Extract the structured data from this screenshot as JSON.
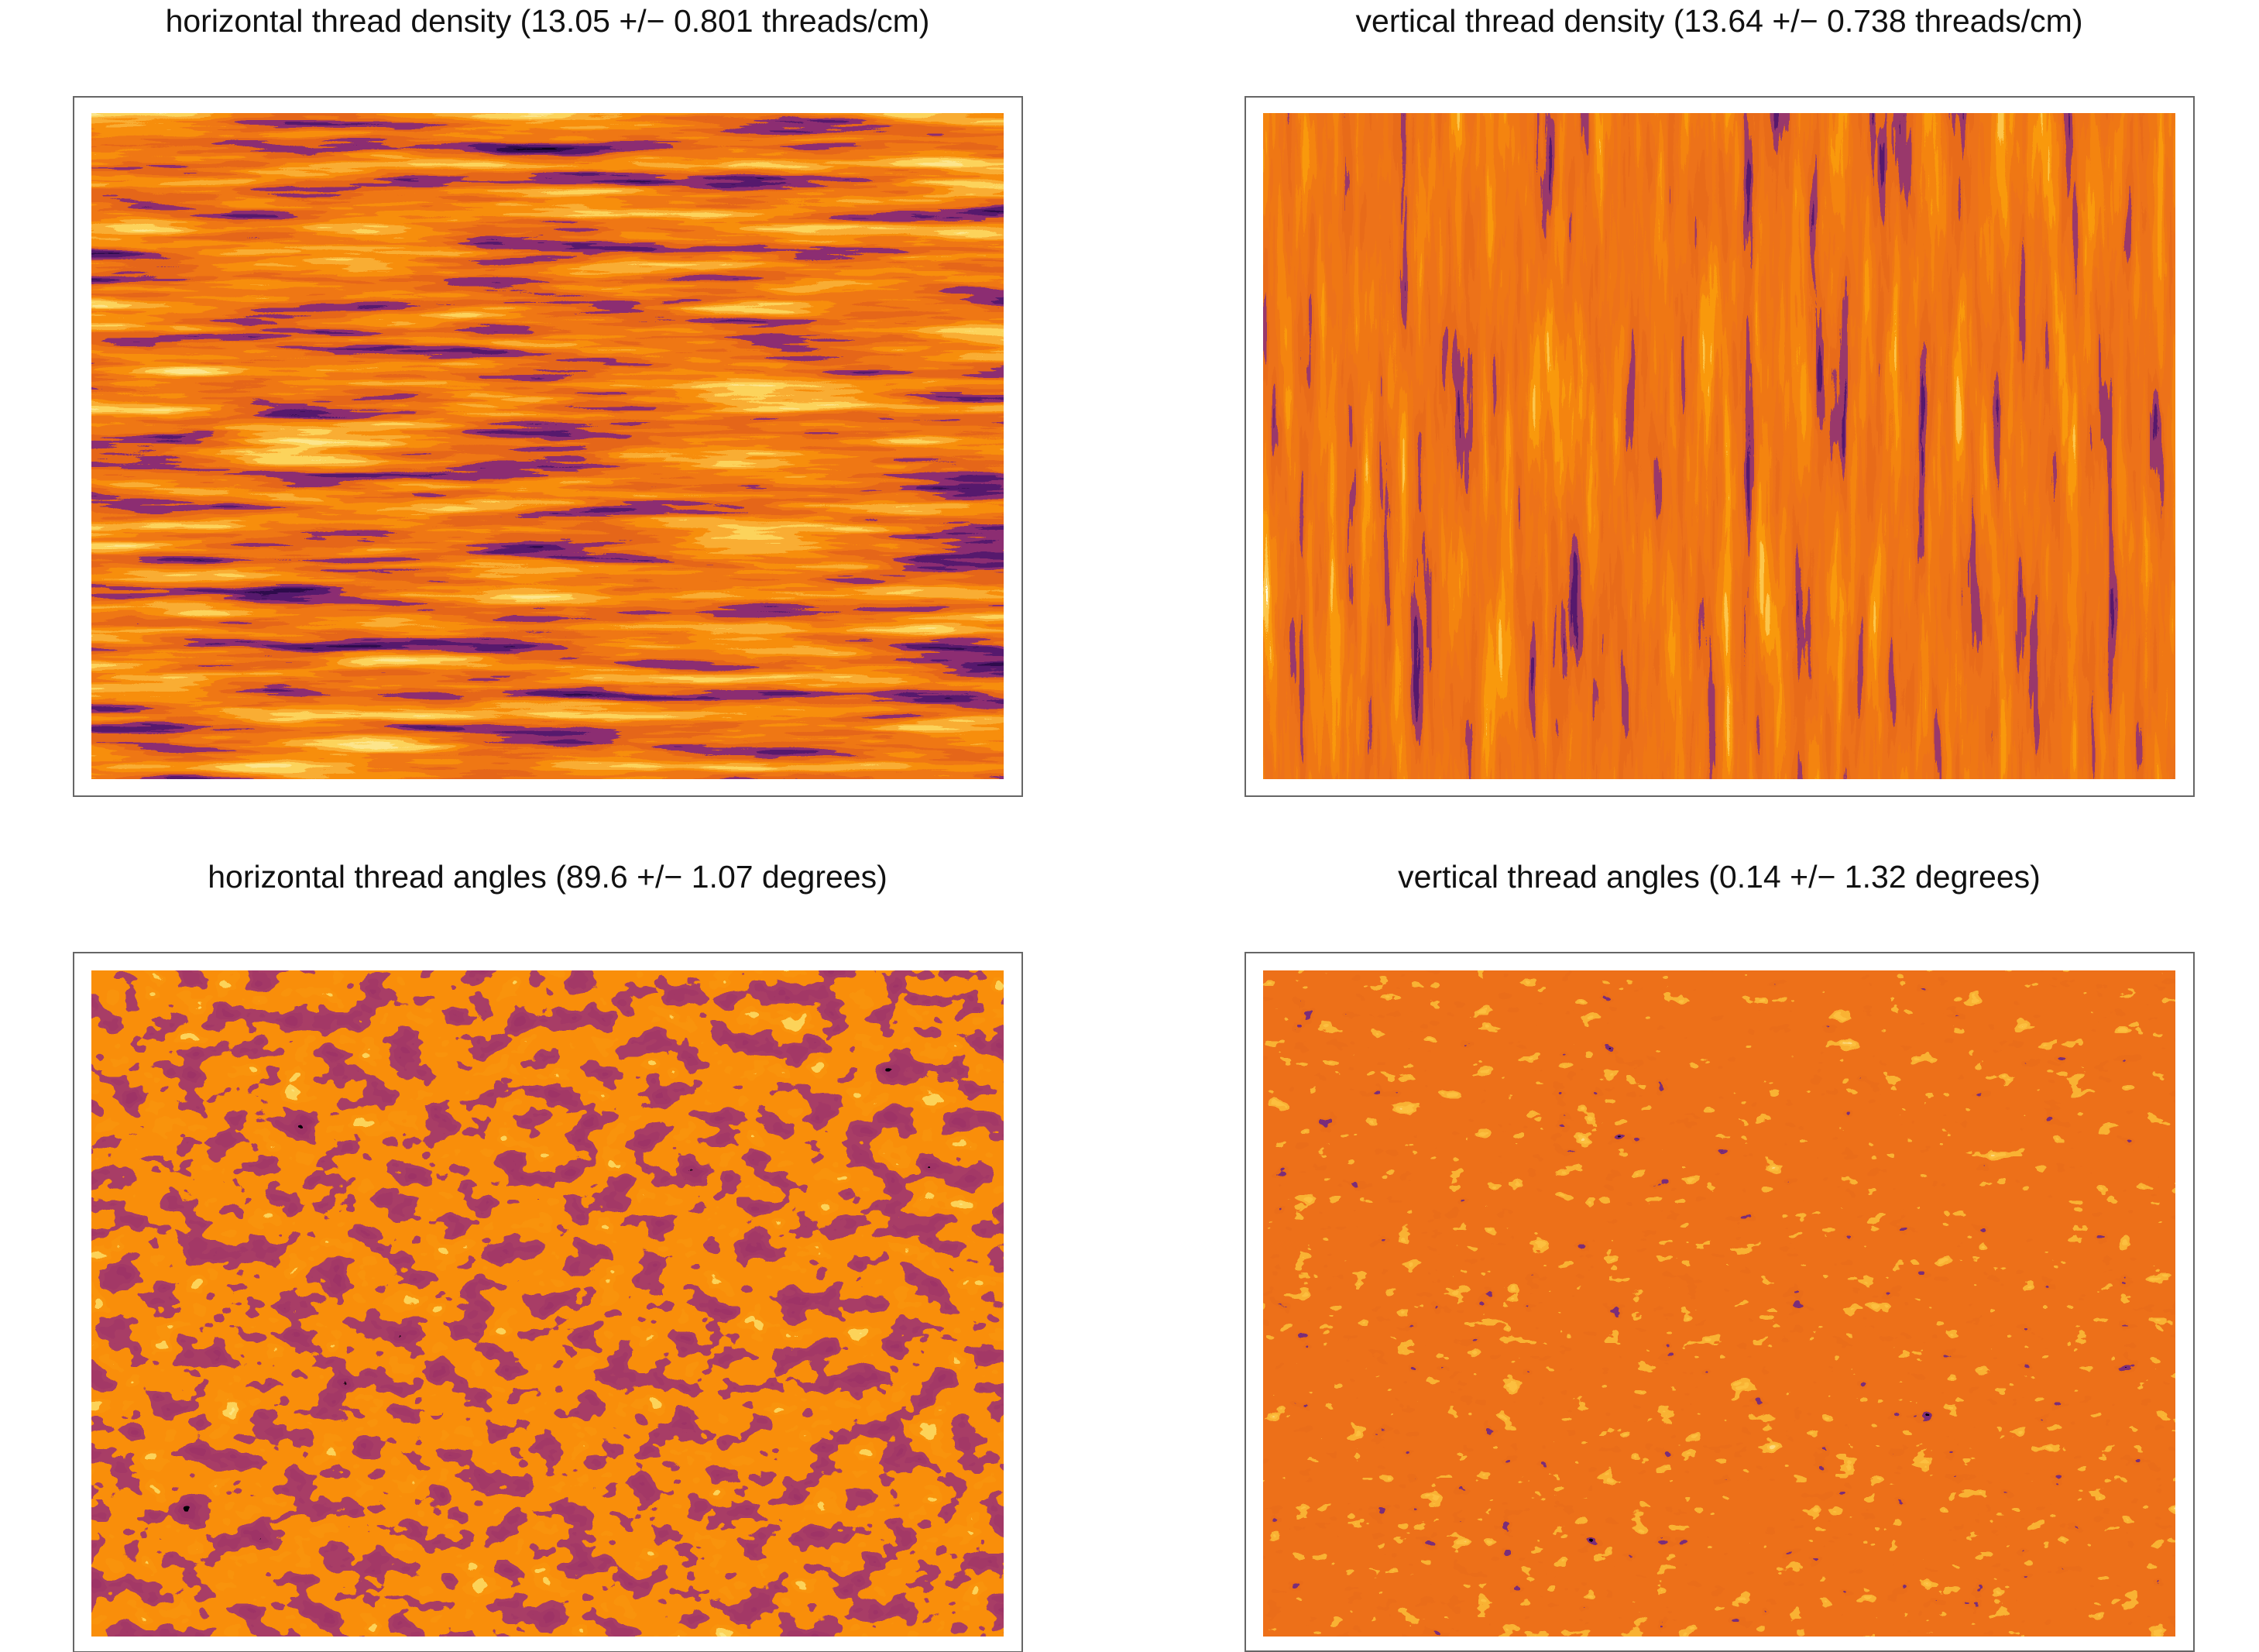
{
  "panels": [
    {
      "title": "horizontal thread density (13.05 +/− 0.801 threads/cm)"
    },
    {
      "title": "vertical thread density (13.64 +/− 0.738 threads/cm)"
    },
    {
      "title": "horizontal thread angles (89.6 +/− 1.07 degrees)"
    },
    {
      "title": "vertical thread angles (0.14 +/− 1.32 degrees)"
    }
  ]
}
